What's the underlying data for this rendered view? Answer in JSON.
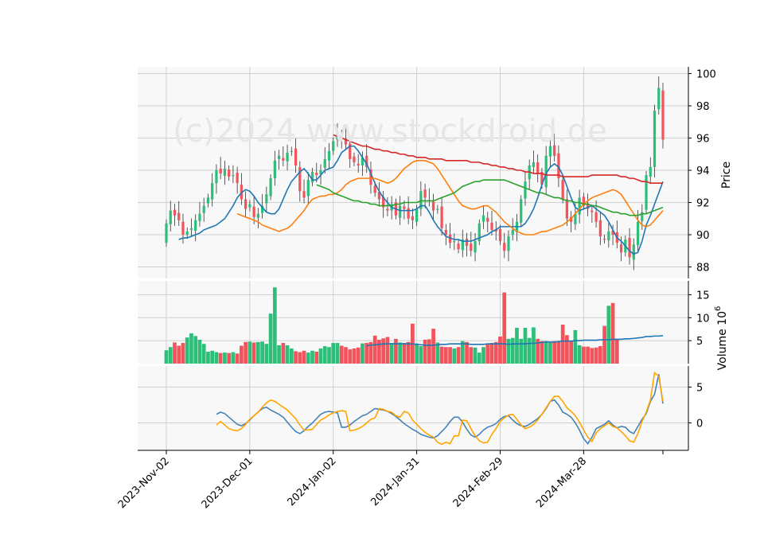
{
  "watermark": "(c)2024 www.stockdroid.de",
  "colors": {
    "up": "#2dbf7a",
    "down": "#f2545b",
    "sma_fast": "#1f77b4",
    "sma_mid": "#ff7f0e",
    "sma_slow": "#2ca02c",
    "sma_long": "#d62728",
    "volume_avg": "#1f77b4",
    "macd": "#4682b4",
    "signal": "#ffa500",
    "panel_bg": "#f8f8f8",
    "grid": "#d0d0d0"
  },
  "chart_data": [
    {
      "type": "candlestick",
      "panel": "price",
      "ylabel": "Price",
      "ylim": [
        87.5,
        100.3
      ],
      "yticks": [
        88,
        90,
        92,
        94,
        96,
        98,
        100
      ],
      "xticks": [
        "2023-Nov-02",
        "2023-Dec-01",
        "2024-Jan-02",
        "2024-Jan-31",
        "2024-Feb-29",
        "2024-Mar-28"
      ],
      "xtick_index": [
        0,
        20,
        40,
        60,
        80,
        100
      ],
      "grid": true,
      "close": [
        90.7,
        91.5,
        91.2,
        90.9,
        90.0,
        90.2,
        90.4,
        90.9,
        91.3,
        91.8,
        92.3,
        93.2,
        94.0,
        93.8,
        94.1,
        93.6,
        93.7,
        93.2,
        92.2,
        91.6,
        91.9,
        91.1,
        91.3,
        91.8,
        92.5,
        93.5,
        94.6,
        94.9,
        94.6,
        95.1,
        95.2,
        94.3,
        92.7,
        92.3,
        93.4,
        93.9,
        93.7,
        94.0,
        94.7,
        95.2,
        95.8,
        96.3,
        96.0,
        95.6,
        94.7,
        94.5,
        94.3,
        94.8,
        94.2,
        93.1,
        92.6,
        92.2,
        91.7,
        91.5,
        91.9,
        91.2,
        91.8,
        91.6,
        91.0,
        90.9,
        91.6,
        92.7,
        92.3,
        92.1,
        91.5,
        91.6,
        90.4,
        90.0,
        89.5,
        89.6,
        89.1,
        89.7,
        89.3,
        89.0,
        89.6,
        90.7,
        91.2,
        90.8,
        90.3,
        90.2,
        89.6,
        89.0,
        89.9,
        90.3,
        90.8,
        92.2,
        93.3,
        94.3,
        94.5,
        93.8,
        93.1,
        94.9,
        95.5,
        94.9,
        93.5,
        92.2,
        91.0,
        90.8,
        91.3,
        92.3,
        91.8,
        91.6,
        91.4,
        90.8,
        89.9,
        89.7,
        90.2,
        90.0,
        89.5,
        88.9,
        89.7,
        88.6,
        89.4,
        90.8,
        91.4,
        93.7,
        94.2,
        97.7,
        99.1,
        95.9
      ]
    },
    {
      "type": "line",
      "panel": "price",
      "series": [
        {
          "style": "sma_fast",
          "values": [
            89.7,
            89.8,
            89.8,
            89.9,
            90.0,
            90.1,
            90.3,
            90.4,
            90.5,
            90.6,
            90.8,
            91.0,
            91.4,
            91.8,
            92.3,
            92.6,
            92.8,
            92.7,
            92.4,
            92.0,
            91.7,
            91.4,
            91.3,
            91.3,
            91.6,
            92.2,
            92.8,
            93.3,
            93.6,
            93.9,
            94.1,
            93.8,
            93.4,
            93.4,
            93.7,
            94.0,
            94.1,
            94.2,
            94.6,
            95.1,
            95.3,
            95.5,
            95.5,
            95.2,
            94.8,
            94.4,
            93.8,
            93.2,
            92.7,
            92.3,
            92.0,
            91.7,
            91.6,
            91.5,
            91.5,
            91.5,
            91.5,
            91.6,
            91.8,
            91.8,
            91.4,
            90.9,
            90.5,
            90.2,
            89.9,
            89.8,
            89.7,
            89.7,
            89.6,
            89.6,
            89.6,
            89.7,
            89.8,
            89.9,
            90.0,
            90.2,
            90.3,
            90.5,
            90.5,
            90.5,
            90.5,
            90.5,
            90.5,
            90.7,
            91.1,
            91.6,
            92.3,
            93.1,
            93.8,
            94.2,
            94.4,
            94.2,
            93.7,
            93.0,
            92.3,
            91.7,
            91.5,
            91.6,
            91.7,
            91.8,
            91.6,
            91.4,
            91.2,
            90.8,
            90.3,
            89.8,
            89.6,
            89.3,
            89.0,
            88.8,
            88.9,
            89.6,
            90.6,
            91.2,
            91.9,
            92.6,
            93.3
          ]
        },
        {
          "style": "sma_mid",
          "values": [
            91.3,
            91.2,
            91.1,
            91.0,
            90.9,
            90.8,
            90.6,
            90.5,
            90.4,
            90.3,
            90.2,
            90.3,
            90.4,
            90.6,
            90.9,
            91.2,
            91.5,
            91.9,
            92.2,
            92.3,
            92.4,
            92.4,
            92.5,
            92.5,
            92.6,
            92.8,
            93.1,
            93.3,
            93.4,
            93.5,
            93.5,
            93.5,
            93.5,
            93.5,
            93.4,
            93.3,
            93.2,
            93.3,
            93.5,
            93.8,
            94.1,
            94.3,
            94.5,
            94.6,
            94.6,
            94.6,
            94.5,
            94.4,
            94.1,
            93.7,
            93.3,
            92.9,
            92.5,
            92.1,
            91.8,
            91.7,
            91.6,
            91.6,
            91.7,
            91.8,
            91.8,
            91.6,
            91.4,
            91.1,
            90.8,
            90.6,
            90.4,
            90.2,
            90.1,
            90.0,
            90.0,
            90.0,
            90.1,
            90.2,
            90.2,
            90.3,
            90.4,
            90.5,
            90.6,
            90.8,
            91.0,
            91.3,
            91.6,
            91.9,
            92.1,
            92.3,
            92.4,
            92.5,
            92.6,
            92.7,
            92.8,
            92.7,
            92.5,
            92.1,
            91.7,
            91.3,
            90.9,
            90.6,
            90.5,
            90.6,
            90.9,
            91.2,
            91.5
          ]
        },
        {
          "style": "sma_slow",
          "values": [
            93.1,
            93.0,
            92.9,
            92.8,
            92.6,
            92.5,
            92.4,
            92.3,
            92.2,
            92.1,
            92.1,
            92.0,
            92.0,
            91.9,
            91.9,
            91.8,
            91.8,
            91.8,
            91.8,
            91.9,
            91.9,
            92.0,
            92.0,
            92.0,
            92.0,
            92.1,
            92.1,
            92.1,
            92.1,
            92.2,
            92.3,
            92.4,
            92.5,
            92.6,
            92.8,
            93.0,
            93.1,
            93.2,
            93.3,
            93.3,
            93.4,
            93.4,
            93.4,
            93.4,
            93.4,
            93.4,
            93.3,
            93.2,
            93.1,
            93.0,
            92.9,
            92.8,
            92.7,
            92.6,
            92.6,
            92.5,
            92.4,
            92.3,
            92.3,
            92.2,
            92.1,
            92.1,
            92.0,
            92.0,
            91.9,
            91.9,
            91.8,
            91.8,
            91.7,
            91.6,
            91.5,
            91.4,
            91.4,
            91.3,
            91.3,
            91.2,
            91.2,
            91.2,
            91.3,
            91.3,
            91.4,
            91.5,
            91.6,
            91.7
          ]
        },
        {
          "style": "sma_long",
          "values": [
            96.2,
            96.1,
            96.0,
            95.9,
            95.8,
            95.7,
            95.6,
            95.5,
            95.5,
            95.4,
            95.3,
            95.3,
            95.2,
            95.2,
            95.1,
            95.1,
            95.0,
            95.0,
            94.9,
            94.9,
            94.8,
            94.8,
            94.8,
            94.7,
            94.7,
            94.7,
            94.7,
            94.6,
            94.6,
            94.6,
            94.6,
            94.6,
            94.6,
            94.5,
            94.5,
            94.5,
            94.4,
            94.4,
            94.3,
            94.3,
            94.2,
            94.2,
            94.1,
            94.1,
            94.0,
            94.0,
            93.9,
            93.9,
            93.8,
            93.8,
            93.8,
            93.7,
            93.7,
            93.7,
            93.7,
            93.6,
            93.6,
            93.6,
            93.6,
            93.6,
            93.6,
            93.6,
            93.7,
            93.7,
            93.7,
            93.7,
            93.7,
            93.7,
            93.7,
            93.6,
            93.6,
            93.5,
            93.5,
            93.4,
            93.3,
            93.3,
            93.2,
            93.2,
            93.2,
            93.2
          ]
        }
      ]
    },
    {
      "type": "bar",
      "panel": "volume",
      "ylabel": "Volume  10^6",
      "yticks": [
        5,
        10,
        15
      ],
      "ylim": [
        0,
        17
      ],
      "values": [
        2.9,
        3.6,
        4.6,
        3.9,
        4.5,
        5.7,
        6.6,
        6.0,
        5.2,
        4.3,
        2.6,
        2.8,
        2.5,
        2.3,
        2.4,
        2.3,
        2.5,
        2.2,
        3.9,
        4.7,
        4.8,
        4.6,
        4.7,
        4.8,
        4.3,
        10.9,
        16.6,
        4.0,
        4.5,
        4.0,
        3.3,
        2.7,
        2.5,
        2.8,
        2.4,
        2.8,
        2.6,
        3.3,
        3.8,
        3.6,
        4.5,
        4.5,
        3.9,
        3.6,
        3.1,
        3.3,
        3.5,
        4.4,
        4.5,
        4.7,
        6.1,
        5.2,
        5.5,
        5.8,
        4.5,
        5.4,
        4.6,
        4.5,
        4.7,
        8.7,
        4.4,
        3.8,
        5.2,
        5.3,
        7.6,
        4.6,
        3.7,
        3.6,
        3.6,
        3.3,
        3.6,
        4.9,
        4.7,
        3.6,
        3.5,
        2.4,
        3.6,
        4.4,
        4.5,
        4.7,
        5.9,
        15.5,
        5.4,
        5.6,
        7.8,
        5.4,
        7.8,
        5.6,
        7.9,
        5.4,
        4.9,
        4.9,
        4.6,
        4.9,
        4.7,
        8.5,
        6.2,
        5.0,
        7.3,
        4.0,
        3.7,
        3.7,
        3.4,
        3.5,
        3.8,
        8.2,
        12.6,
        13.2,
        5.4
      ],
      "avg": [
        3.9,
        4.0,
        4.1,
        4.2,
        4.3,
        4.3,
        4.3,
        4.3,
        4.3,
        4.3,
        4.3,
        4.3,
        4.2,
        4.1,
        4.0,
        4.0,
        4.0,
        4.1,
        4.2,
        4.2,
        4.3,
        4.3,
        4.3,
        4.3,
        4.3,
        4.2,
        4.2,
        4.2,
        4.2,
        4.3,
        4.3,
        4.3,
        4.3,
        4.3,
        4.2,
        4.3,
        4.3,
        4.3,
        4.3,
        4.4,
        4.4,
        4.5,
        4.6,
        4.7,
        4.7,
        4.7,
        4.8,
        4.9,
        4.9,
        4.9,
        5.0,
        5.0,
        5.1,
        5.1,
        5.1,
        5.1,
        5.2,
        5.2,
        5.2,
        5.3,
        5.3,
        5.3,
        5.4,
        5.4,
        5.5,
        5.6,
        5.7,
        5.9,
        5.9,
        6.0,
        6.0,
        6.1
      ]
    },
    {
      "type": "line",
      "panel": "macd",
      "yticks": [
        0,
        5
      ],
      "ylim": [
        -4,
        8
      ],
      "series": [
        {
          "style": "macd",
          "values": [
            1.2,
            1.5,
            1.3,
            0.8,
            0.3,
            -0.2,
            -0.4,
            -0.1,
            0.4,
            1.0,
            1.5,
            2.0,
            2.2,
            1.8,
            1.5,
            1.2,
            0.8,
            0.1,
            -0.6,
            -1.2,
            -1.5,
            -1.1,
            -0.5,
            0.0,
            0.6,
            1.2,
            1.5,
            1.6,
            1.5,
            1.4,
            -0.6,
            -0.6,
            -0.3,
            0.2,
            0.6,
            1.0,
            1.2,
            1.6,
            2.0,
            1.9,
            1.8,
            1.6,
            1.3,
            0.9,
            0.4,
            -0.1,
            -0.5,
            -0.9,
            -1.2,
            -1.6,
            -1.8,
            -2.0,
            -2.1,
            -1.8,
            -1.2,
            -0.6,
            0.2,
            0.8,
            0.8,
            0.1,
            -0.9,
            -1.7,
            -2.0,
            -1.6,
            -1.0,
            -0.6,
            -0.4,
            -0.1,
            0.5,
            0.9,
            1.0,
            0.4,
            -0.1,
            -0.4,
            -0.5,
            -0.2,
            0.2,
            0.6,
            1.2,
            2.0,
            3.0,
            3.2,
            2.5,
            1.5,
            1.2,
            0.8,
            0.0,
            -1.0,
            -2.2,
            -2.9,
            -2.0,
            -0.8,
            -0.5,
            -0.2,
            0.3,
            -0.3,
            -0.7,
            -0.5,
            -0.6,
            -1.2,
            -1.5,
            -0.5,
            0.5,
            1.3,
            3.0,
            4.0,
            6.8,
            2.7
          ]
        },
        {
          "style": "signal",
          "values": [
            -0.3,
            0.2,
            -0.3,
            -0.8,
            -1.0,
            -1.1,
            -0.8,
            -0.2,
            0.5,
            1.0,
            1.5,
            2.2,
            2.8,
            3.2,
            3.0,
            2.6,
            2.2,
            1.8,
            1.2,
            0.6,
            -0.3,
            -1.0,
            -1.0,
            -0.9,
            -0.2,
            0.4,
            0.7,
            1.1,
            1.4,
            1.6,
            1.7,
            1.6,
            -1.1,
            -1.0,
            -0.8,
            -0.5,
            0.0,
            0.5,
            0.7,
            2.0,
            1.9,
            1.6,
            1.5,
            1.0,
            0.8,
            1.6,
            1.4,
            0.4,
            -0.2,
            -0.8,
            -1.3,
            -1.7,
            -2.0,
            -2.7,
            -3.0,
            -2.7,
            -2.9,
            -1.8,
            -1.8,
            0.4,
            0.3,
            -0.8,
            -1.8,
            -2.5,
            -2.8,
            -2.7,
            -1.6,
            -0.8,
            0.2,
            0.7,
            1.1,
            1.2,
            0.5,
            -0.3,
            -0.8,
            -0.6,
            -0.2,
            0.4,
            1.2,
            2.1,
            3.0,
            3.7,
            3.7,
            3.0,
            2.1,
            1.6,
            1.0,
            0.1,
            -1.0,
            -2.0,
            -2.6,
            -1.4,
            -0.8,
            -0.4,
            0.0,
            -0.5,
            -0.7,
            -1.2,
            -1.8,
            -2.5,
            -2.7,
            -1.5,
            0.2,
            1.5,
            3.2,
            7.0,
            6.5,
            3.0
          ]
        }
      ]
    }
  ]
}
